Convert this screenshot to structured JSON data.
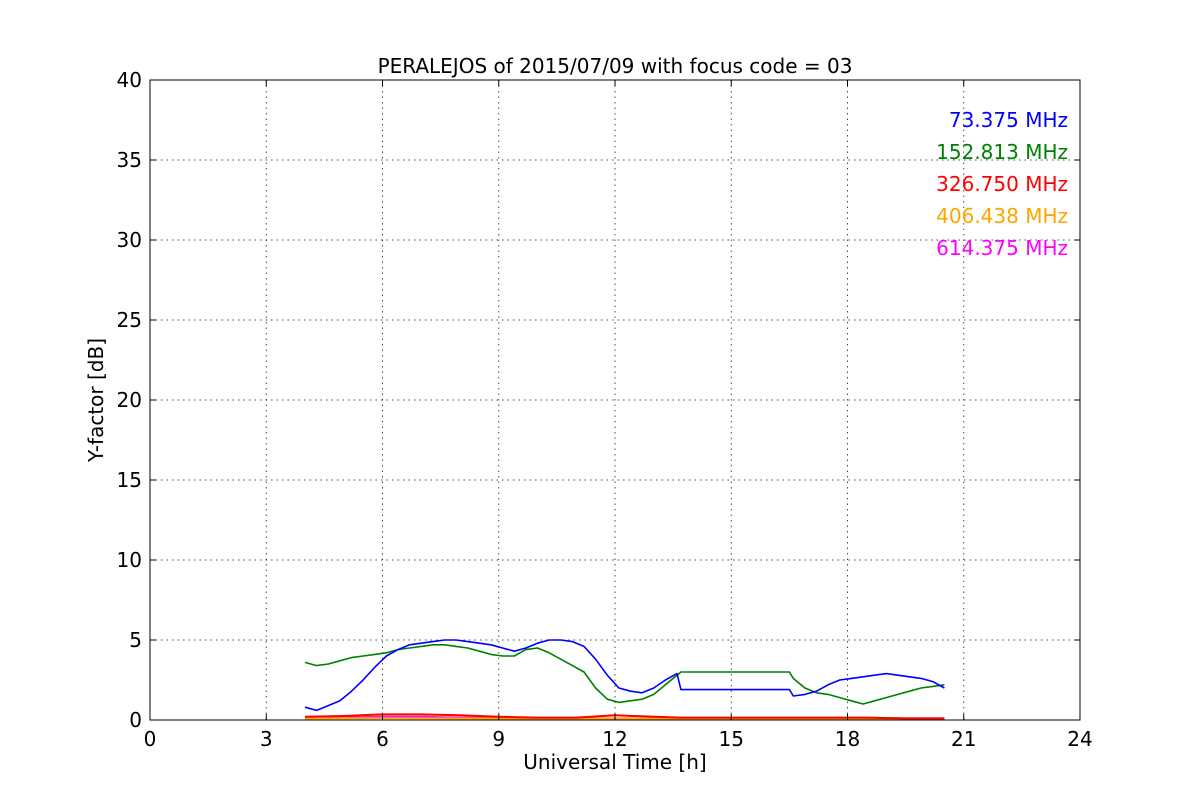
{
  "chart_data": {
    "type": "line",
    "title": "PERALEJOS of 2015/07/09 with focus code = 03",
    "xlabel": "Universal Time [h]",
    "ylabel": "Y-factor [dB]",
    "xlim": [
      0,
      24
    ],
    "ylim": [
      0,
      40
    ],
    "xticks": [
      "0",
      "3",
      "6",
      "9",
      "12",
      "15",
      "18",
      "21",
      "24"
    ],
    "yticks": [
      "0",
      "5",
      "10",
      "15",
      "20",
      "25",
      "30",
      "35",
      "40"
    ],
    "grid": true,
    "legend_placement": "top-right",
    "series": [
      {
        "name": "73.375 MHz",
        "color": "#0000ff",
        "x": [
          4.0,
          4.3,
          4.6,
          4.9,
          5.2,
          5.5,
          5.8,
          6.1,
          6.4,
          6.7,
          7.0,
          7.3,
          7.6,
          7.9,
          8.2,
          8.5,
          8.8,
          9.1,
          9.4,
          9.7,
          10.0,
          10.3,
          10.6,
          10.9,
          11.2,
          11.5,
          11.8,
          12.1,
          12.4,
          12.7,
          13.0,
          13.3,
          13.6,
          13.7,
          16.5,
          16.6,
          16.9,
          17.2,
          17.5,
          17.8,
          18.1,
          18.4,
          18.7,
          19.0,
          19.3,
          19.6,
          19.9,
          20.2,
          20.5
        ],
        "values": [
          0.8,
          0.6,
          0.9,
          1.2,
          1.8,
          2.5,
          3.3,
          4.0,
          4.4,
          4.7,
          4.8,
          4.9,
          5.0,
          5.0,
          4.9,
          4.8,
          4.7,
          4.5,
          4.3,
          4.5,
          4.8,
          5.0,
          5.0,
          4.9,
          4.6,
          3.8,
          2.8,
          2.0,
          1.8,
          1.7,
          2.0,
          2.5,
          2.9,
          1.9,
          1.9,
          1.5,
          1.6,
          1.8,
          2.2,
          2.5,
          2.6,
          2.7,
          2.8,
          2.9,
          2.8,
          2.7,
          2.6,
          2.4,
          2.0
        ]
      },
      {
        "name": "152.813 MHz",
        "color": "#008000",
        "x": [
          4.0,
          4.3,
          4.6,
          4.9,
          5.2,
          5.5,
          5.8,
          6.1,
          6.4,
          6.7,
          7.0,
          7.3,
          7.6,
          7.9,
          8.2,
          8.5,
          8.8,
          9.1,
          9.4,
          9.7,
          10.0,
          10.3,
          10.6,
          10.9,
          11.2,
          11.5,
          11.8,
          12.1,
          12.4,
          12.7,
          13.0,
          13.3,
          13.6,
          13.7,
          16.5,
          16.6,
          16.9,
          17.2,
          17.5,
          17.8,
          18.1,
          18.4,
          18.7,
          19.0,
          19.3,
          19.6,
          19.9,
          20.2,
          20.5
        ],
        "values": [
          3.6,
          3.4,
          3.5,
          3.7,
          3.9,
          4.0,
          4.1,
          4.2,
          4.4,
          4.5,
          4.6,
          4.7,
          4.7,
          4.6,
          4.5,
          4.3,
          4.1,
          4.0,
          4.0,
          4.4,
          4.5,
          4.2,
          3.8,
          3.4,
          3.0,
          2.0,
          1.3,
          1.1,
          1.2,
          1.3,
          1.6,
          2.2,
          2.8,
          3.0,
          3.0,
          2.6,
          2.0,
          1.7,
          1.6,
          1.4,
          1.2,
          1.0,
          1.2,
          1.4,
          1.6,
          1.8,
          2.0,
          2.1,
          2.2
        ]
      },
      {
        "name": "326.750 MHz",
        "color": "#ff0000",
        "x": [
          4.0,
          5.0,
          6.0,
          7.0,
          8.0,
          9.0,
          10.0,
          11.0,
          12.0,
          13.0,
          13.7,
          16.5,
          17.5,
          18.5,
          19.5,
          20.5
        ],
        "values": [
          0.2,
          0.25,
          0.35,
          0.35,
          0.3,
          0.2,
          0.15,
          0.15,
          0.3,
          0.2,
          0.15,
          0.15,
          0.15,
          0.15,
          0.1,
          0.1
        ]
      },
      {
        "name": "406.438 MHz",
        "color": "#ffa500",
        "x": [
          4.0,
          6.0,
          8.0,
          10.0,
          12.0,
          13.7,
          16.5,
          18.5,
          20.5
        ],
        "values": [
          0.1,
          0.12,
          0.1,
          0.08,
          0.1,
          0.08,
          0.08,
          0.08,
          0.08
        ]
      },
      {
        "name": "614.375 MHz",
        "color": "#ff00ff",
        "x": [
          4.0,
          5.0,
          6.0,
          7.0,
          8.0,
          9.0,
          10.0,
          11.0,
          12.0,
          13.0,
          13.7,
          16.5,
          17.5,
          18.5,
          19.5,
          20.5
        ],
        "values": [
          0.15,
          0.15,
          0.2,
          0.2,
          0.15,
          0.15,
          0.1,
          0.1,
          0.1,
          0.1,
          0.1,
          0.1,
          0.1,
          0.1,
          0.1,
          0.1
        ]
      }
    ]
  }
}
